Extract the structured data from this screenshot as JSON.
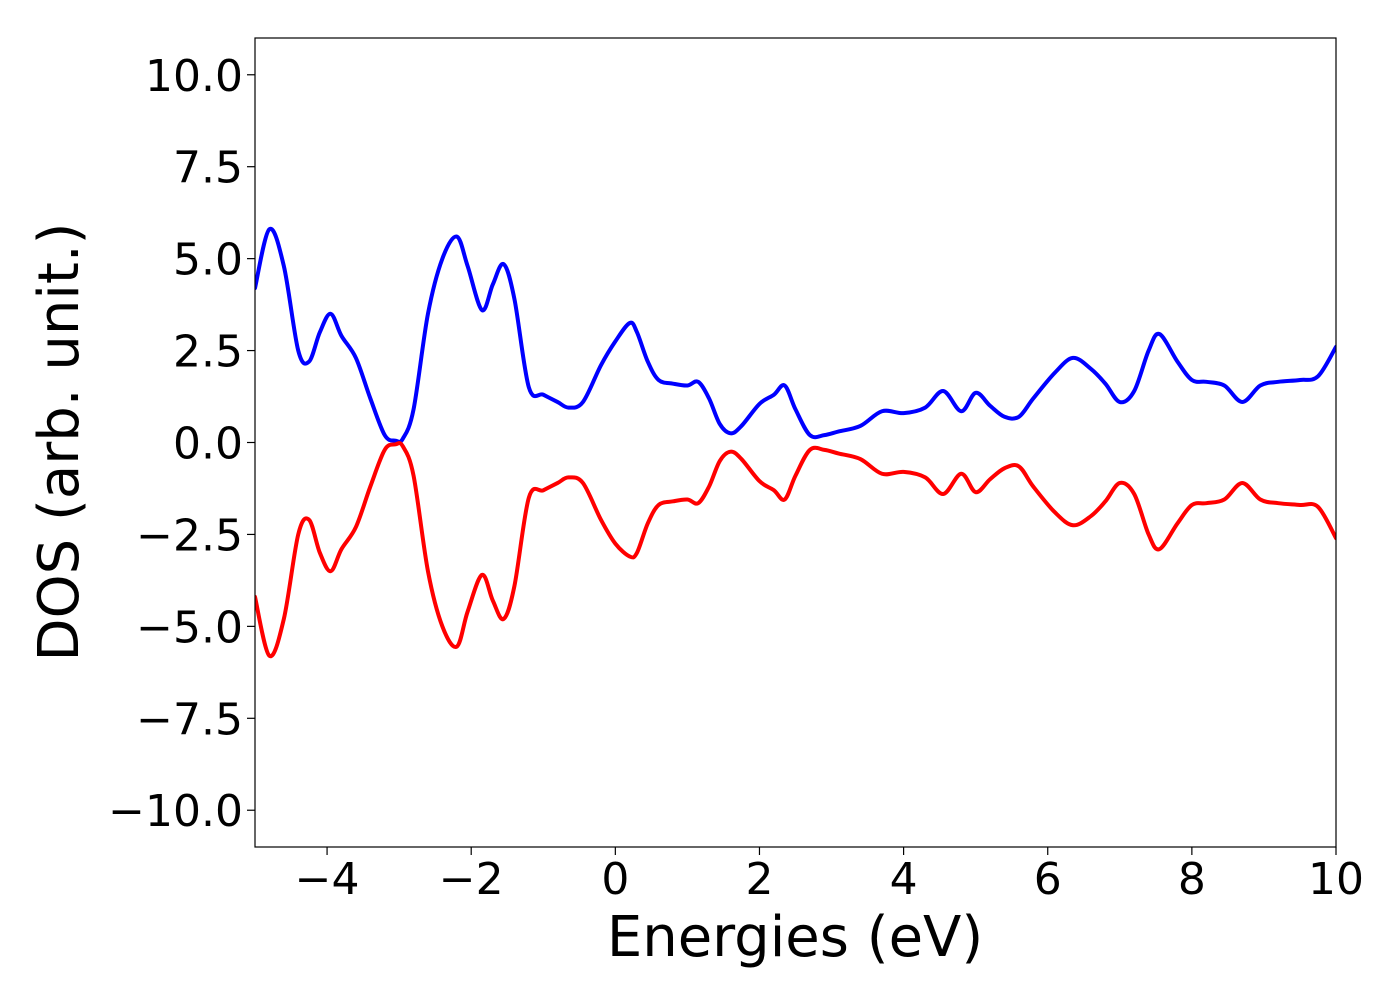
{
  "chart_data": {
    "type": "line",
    "xlabel": "Energies (eV)",
    "ylabel": "DOS (arb. unit.)",
    "xlim": [
      -5,
      10
    ],
    "ylim": [
      -11,
      11
    ],
    "x_ticks": [
      -4,
      -2,
      0,
      2,
      4,
      6,
      8,
      10
    ],
    "x_tick_labels": [
      "−4",
      "−2",
      "0",
      "2",
      "4",
      "6",
      "8",
      "10"
    ],
    "y_ticks": [
      10,
      7.5,
      5,
      2.5,
      0,
      -2.5,
      -5,
      -7.5,
      -10
    ],
    "y_tick_labels": [
      "10.0",
      "7.5",
      "5.0",
      "2.5",
      "0.0",
      "−2.5",
      "−5.0",
      "−7.5",
      "−10.0"
    ],
    "grid": false,
    "series": [
      {
        "color": "#0000ff",
        "x": [
          -5.0,
          -4.8,
          -4.6,
          -4.4,
          -4.25,
          -4.1,
          -3.95,
          -3.8,
          -3.6,
          -3.4,
          -3.2,
          -3.05,
          -2.95,
          -2.8,
          -2.6,
          -2.4,
          -2.2,
          -2.05,
          -1.85,
          -1.7,
          -1.55,
          -1.4,
          -1.2,
          -1.0,
          -0.8,
          -0.65,
          -0.45,
          -0.2,
          0.0,
          0.2,
          0.3,
          0.45,
          0.6,
          0.8,
          1.0,
          1.15,
          1.3,
          1.45,
          1.6,
          1.75,
          2.0,
          2.2,
          2.35,
          2.5,
          2.7,
          2.9,
          3.1,
          3.4,
          3.7,
          4.0,
          4.3,
          4.55,
          4.8,
          5.0,
          5.2,
          5.4,
          5.6,
          5.8,
          6.1,
          6.35,
          6.6,
          6.8,
          7.0,
          7.2,
          7.4,
          7.55,
          7.8,
          8.0,
          8.2,
          8.45,
          8.7,
          8.95,
          9.2,
          9.5,
          9.75,
          10.0
        ],
        "y": [
          4.2,
          5.8,
          4.8,
          2.5,
          2.2,
          3.0,
          3.5,
          2.9,
          2.3,
          1.2,
          0.2,
          0.05,
          0.1,
          0.9,
          3.5,
          5.0,
          5.6,
          4.8,
          3.6,
          4.3,
          4.85,
          3.9,
          1.5,
          1.3,
          1.1,
          0.95,
          1.1,
          2.1,
          2.75,
          3.25,
          3.0,
          2.2,
          1.7,
          1.6,
          1.55,
          1.65,
          1.2,
          0.5,
          0.25,
          0.45,
          1.05,
          1.3,
          1.55,
          0.9,
          0.2,
          0.2,
          0.3,
          0.45,
          0.85,
          0.8,
          0.95,
          1.4,
          0.85,
          1.35,
          1.0,
          0.7,
          0.7,
          1.2,
          1.9,
          2.3,
          2.0,
          1.6,
          1.1,
          1.4,
          2.5,
          2.95,
          2.2,
          1.7,
          1.65,
          1.55,
          1.1,
          1.55,
          1.65,
          1.7,
          1.8,
          2.6
        ]
      },
      {
        "color": "#ff0000",
        "x": [
          -5.0,
          -4.8,
          -4.6,
          -4.4,
          -4.25,
          -4.1,
          -3.95,
          -3.8,
          -3.6,
          -3.4,
          -3.2,
          -3.05,
          -2.95,
          -2.8,
          -2.6,
          -2.4,
          -2.2,
          -2.05,
          -1.85,
          -1.7,
          -1.55,
          -1.4,
          -1.2,
          -1.0,
          -0.8,
          -0.65,
          -0.45,
          -0.2,
          0.0,
          0.2,
          0.3,
          0.45,
          0.6,
          0.8,
          1.0,
          1.15,
          1.3,
          1.45,
          1.6,
          1.75,
          2.0,
          2.2,
          2.35,
          2.5,
          2.7,
          2.9,
          3.1,
          3.4,
          3.7,
          4.0,
          4.3,
          4.55,
          4.8,
          5.0,
          5.2,
          5.4,
          5.6,
          5.8,
          6.1,
          6.35,
          6.6,
          6.8,
          7.0,
          7.2,
          7.4,
          7.55,
          7.8,
          8.0,
          8.2,
          8.45,
          8.7,
          8.95,
          9.2,
          9.5,
          9.75,
          10.0
        ],
        "y": [
          -4.2,
          -5.8,
          -4.8,
          -2.5,
          -2.1,
          -3.0,
          -3.5,
          -2.9,
          -2.3,
          -1.2,
          -0.2,
          -0.05,
          -0.1,
          -0.9,
          -3.5,
          -5.0,
          -5.55,
          -4.6,
          -3.6,
          -4.3,
          -4.8,
          -3.9,
          -1.5,
          -1.3,
          -1.1,
          -0.95,
          -1.1,
          -2.1,
          -2.75,
          -3.1,
          -3.0,
          -2.2,
          -1.7,
          -1.6,
          -1.55,
          -1.65,
          -1.2,
          -0.5,
          -0.25,
          -0.45,
          -1.05,
          -1.3,
          -1.55,
          -0.9,
          -0.2,
          -0.2,
          -0.3,
          -0.45,
          -0.85,
          -0.8,
          -0.95,
          -1.4,
          -0.85,
          -1.35,
          -1.0,
          -0.7,
          -0.65,
          -1.2,
          -1.9,
          -2.25,
          -2.0,
          -1.6,
          -1.1,
          -1.4,
          -2.5,
          -2.9,
          -2.2,
          -1.7,
          -1.65,
          -1.55,
          -1.1,
          -1.55,
          -1.65,
          -1.7,
          -1.75,
          -2.6
        ]
      }
    ]
  }
}
